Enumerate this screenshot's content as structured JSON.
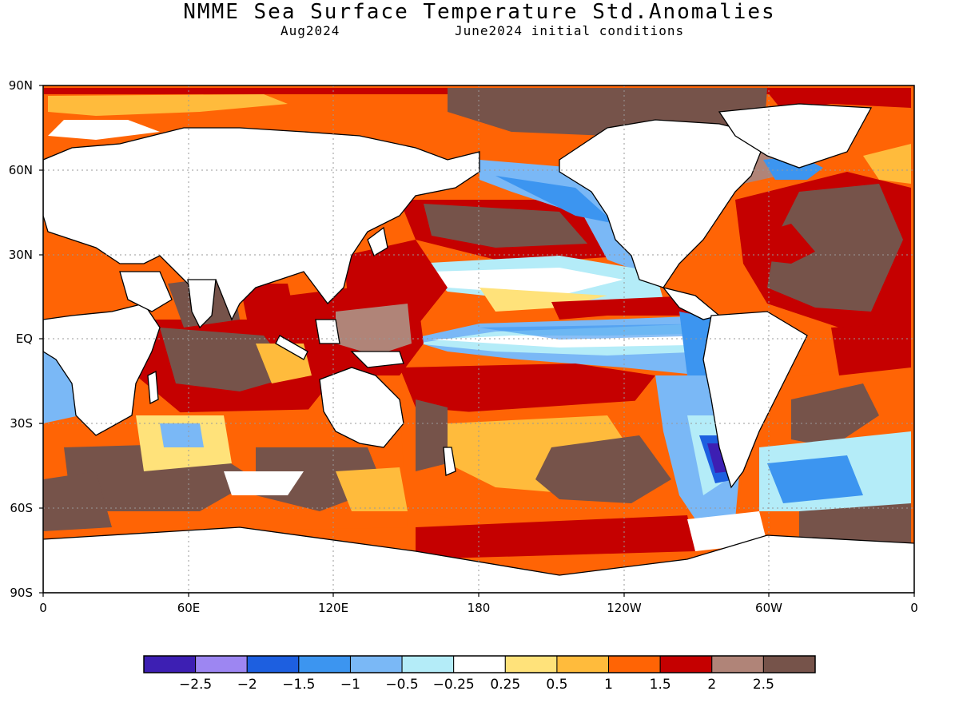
{
  "header": {
    "title": "NMME Sea Surface Temperature Std.Anomalies",
    "valid_month": "Aug2024",
    "initial_conditions": "June2024 initial conditions"
  },
  "map": {
    "lat_labels": [
      "90N",
      "60N",
      "30N",
      "EQ",
      "30S",
      "60S",
      "90S"
    ],
    "lon_labels": [
      "0",
      "60E",
      "120E",
      "180",
      "120W",
      "60W",
      "0"
    ],
    "colors": {
      "land": "#ffffff",
      "coast": "#000000",
      "grid": "#999999"
    }
  },
  "colorbar": {
    "colors": [
      "#3d1fb3",
      "#9d86f2",
      "#1d5fe0",
      "#3c95f0",
      "#7ab8f6",
      "#b4ecf8",
      "#ffffff",
      "#ffe27a",
      "#ffbb3c",
      "#ff6405",
      "#c50000",
      "#b08478",
      "#76534a"
    ],
    "labels": [
      "-2.5",
      "-2",
      "-1.5",
      "-1",
      "-0.5",
      "-0.25",
      "0.25",
      "0.5",
      "1",
      "1.5",
      "2",
      "2.5"
    ]
  }
}
